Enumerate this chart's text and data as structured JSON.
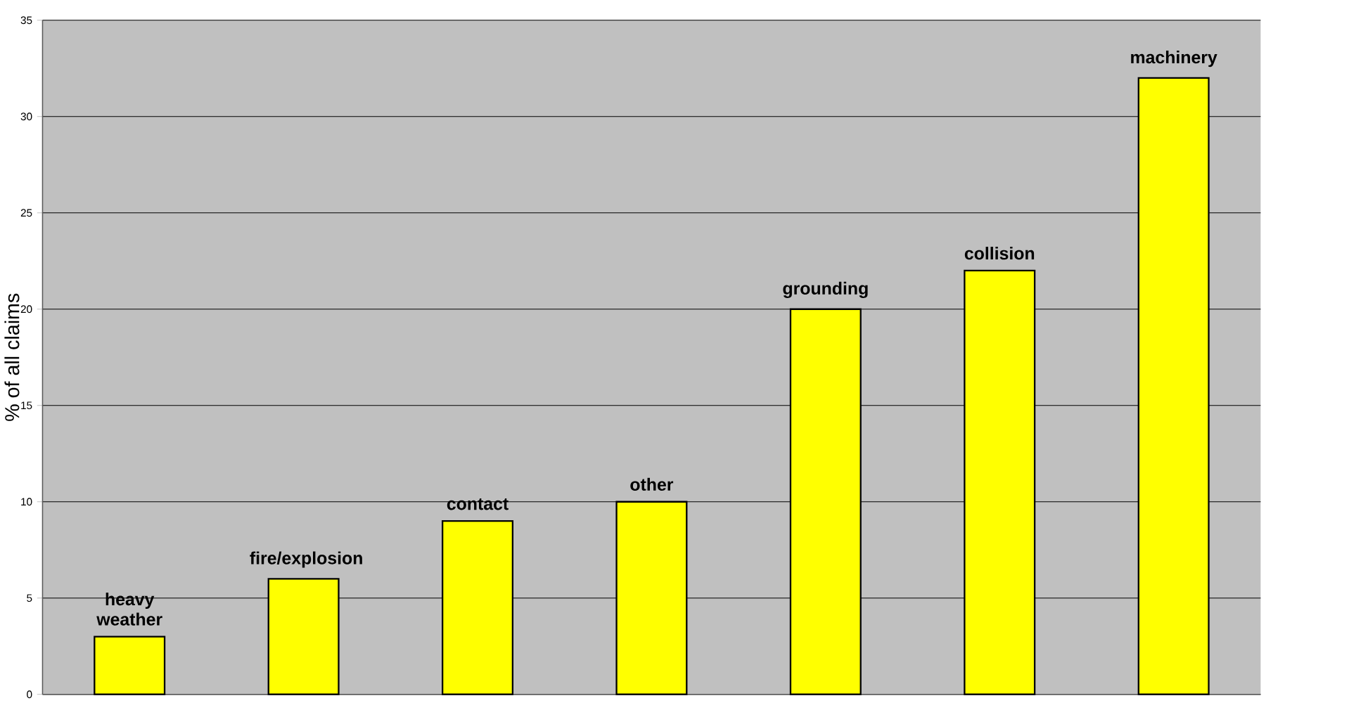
{
  "chart_data": {
    "type": "bar",
    "ylabel": "% of all claims",
    "categories": [
      "heavy weather",
      "fire/explosion",
      "contact",
      "other",
      "grounding",
      "collision",
      "machinery"
    ],
    "values": [
      3,
      6,
      9,
      10,
      20,
      22,
      32
    ],
    "color": "#ffff00",
    "ylim": [
      0,
      35
    ],
    "yticks": [
      0,
      5,
      10,
      15,
      20,
      25,
      30,
      35
    ],
    "grid": "y"
  }
}
